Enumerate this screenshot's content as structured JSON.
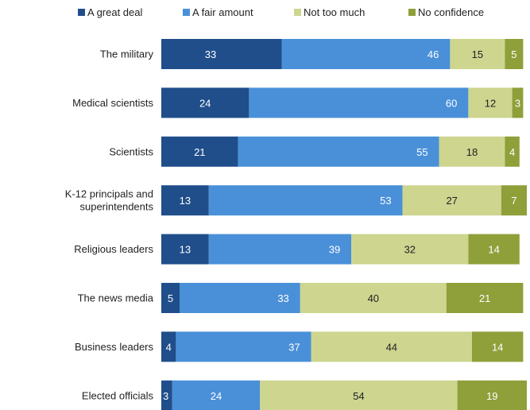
{
  "chart_data": {
    "type": "bar",
    "orientation": "horizontal",
    "stacked": true,
    "title": "",
    "xlabel": "",
    "ylabel": "",
    "xlim": [
      0,
      100
    ],
    "grid": false,
    "legend_position": "top",
    "categories": [
      "The military",
      "Medical scientists",
      "Scientists",
      "K-12 principals and superintendents",
      "Religious leaders",
      "The news media",
      "Business leaders",
      "Elected officials"
    ],
    "category_lines": [
      [
        "The military"
      ],
      [
        "Medical scientists"
      ],
      [
        "Scientists"
      ],
      [
        "K-12 principals and",
        "superintendents"
      ],
      [
        "Religious leaders"
      ],
      [
        "The news media"
      ],
      [
        "Business leaders"
      ],
      [
        "Elected officials"
      ]
    ],
    "series": [
      {
        "name": "A great deal",
        "color": "#1f4e8a",
        "label_color": "#ffffff",
        "values": [
          33,
          24,
          21,
          13,
          13,
          5,
          4,
          3
        ]
      },
      {
        "name": "A fair amount",
        "color": "#4a90d9",
        "label_color": "#ffffff",
        "values": [
          46,
          60,
          55,
          53,
          39,
          33,
          37,
          24
        ]
      },
      {
        "name": "Not too much",
        "color": "#cdd58f",
        "label_color": "#222222",
        "values": [
          15,
          12,
          18,
          27,
          32,
          40,
          44,
          54
        ]
      },
      {
        "name": "No confidence",
        "color": "#8f9f3a",
        "label_color": "#ffffff",
        "values": [
          5,
          3,
          4,
          7,
          14,
          21,
          14,
          19
        ]
      }
    ]
  }
}
